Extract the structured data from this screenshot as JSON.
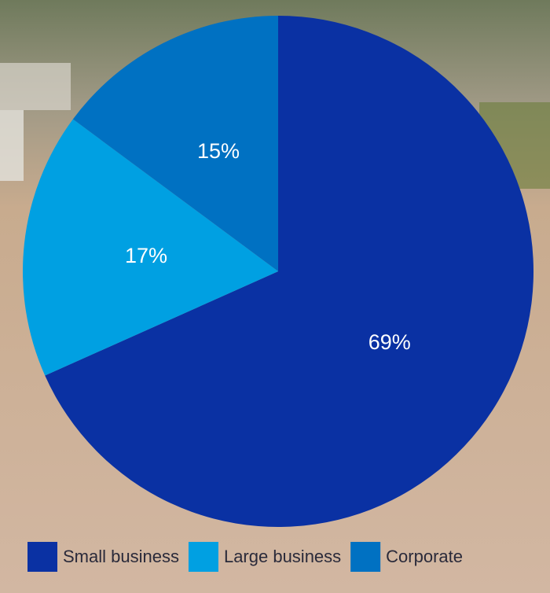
{
  "chart_data": {
    "type": "pie",
    "categories": [
      "Small business",
      "Large business",
      "Corporate"
    ],
    "values": [
      69,
      17,
      15
    ],
    "value_labels": [
      "69%",
      "17%",
      "15%"
    ],
    "colors": [
      "#0a31a3",
      "#00a0e2",
      "#0071c2"
    ],
    "legend": "bottom"
  }
}
